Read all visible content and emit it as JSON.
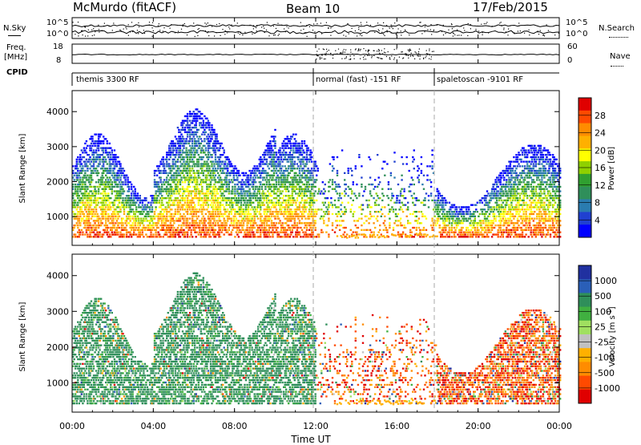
{
  "header": {
    "station": "McMurdo (fitACF)",
    "beam": "Beam 10",
    "date": "17/Feb/2015"
  },
  "strips": {
    "nsky_label": "N.Sky",
    "nsky_ticks": [
      "10^5",
      "10^0"
    ],
    "nsearch_label": "N.Search",
    "nsearch_ticks": [
      "10^5",
      "10^0"
    ],
    "freq_label_1": "Freq.",
    "freq_label_2": "[MHz]",
    "freq_ticks": [
      "18",
      "8"
    ],
    "nave_label": "Nave",
    "nave_ticks": [
      "60",
      "0"
    ],
    "cpid_label": "CPID",
    "cpid_entries": [
      {
        "start_hour": 0,
        "label": "themis 3300 RF"
      },
      {
        "start_hour": 12,
        "label": "normal (fast) -151 RF"
      },
      {
        "start_hour": 17.9,
        "label": "spaletoscan -9101 RF"
      }
    ]
  },
  "chart_data": [
    {
      "type": "heatmap",
      "title": "Power",
      "ylabel": "Slant Range [km]",
      "xlabel": "Time UT",
      "xlim_hours": [
        0,
        24
      ],
      "ylim": [
        180,
        4600
      ],
      "yticks": [
        "1000",
        "2000",
        "3000",
        "4000"
      ],
      "colorbar_label": "Power [dB]",
      "colorbar_ticks": [
        "28",
        "24",
        "20",
        "16",
        "12",
        "8",
        "4"
      ],
      "colorbar_colors": [
        "#e00000",
        "#ff4a00",
        "#ff8c00",
        "#ffb000",
        "#ffff00",
        "#8fd000",
        "#30a030",
        "#2f8f5a",
        "#2a7cb0",
        "#2040d0",
        "#0000ff"
      ]
    },
    {
      "type": "heatmap",
      "title": "Velocity",
      "ylabel": "Slant Range [km]",
      "xlabel": "Time UT",
      "xlim_hours": [
        0,
        24
      ],
      "ylim": [
        180,
        4600
      ],
      "yticks": [
        "1000",
        "2000",
        "3000",
        "4000"
      ],
      "colorbar_label": "Velocity [m s",
      "colorbar_label_sup": "-1",
      "colorbar_label_end": "]",
      "colorbar_ticks": [
        "1000",
        "500",
        "100",
        "25",
        "-25",
        "-100",
        "-500",
        "-1000"
      ],
      "colorbar_colors": [
        "#2030a0",
        "#2a5fb8",
        "#2f8f5a",
        "#40b040",
        "#a0e060",
        "#c0c0c0",
        "#ffb000",
        "#ff8c00",
        "#ff4a00",
        "#e00000"
      ]
    }
  ],
  "time_axis": {
    "labels": [
      "00:00",
      "04:00",
      "08:00",
      "12:00",
      "16:00",
      "20:00",
      "00:00"
    ],
    "title": "Time UT"
  }
}
